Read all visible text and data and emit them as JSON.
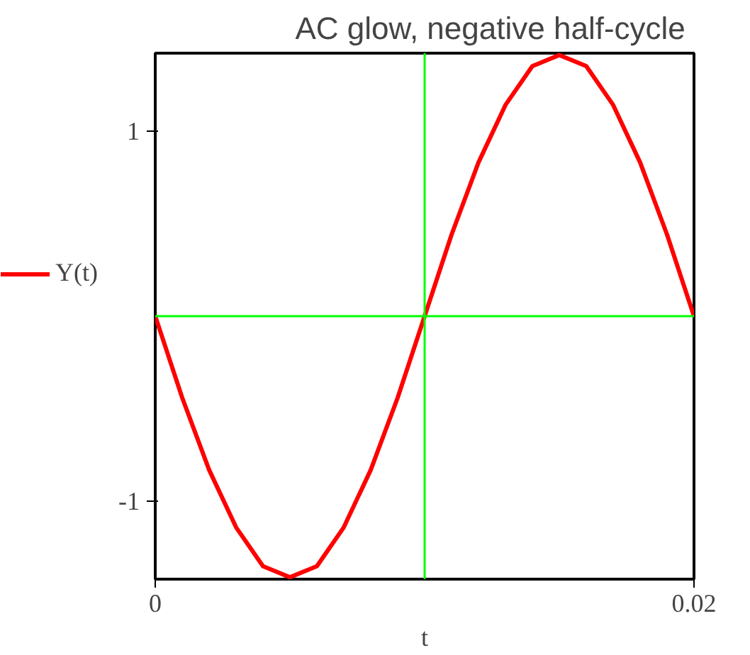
{
  "chart_data": {
    "type": "line",
    "title": "AC  glow, negative half-cycle",
    "xlabel": "t",
    "x": [
      0,
      0.001,
      0.002,
      0.003,
      0.004,
      0.005,
      0.006,
      0.007,
      0.008,
      0.009,
      0.01,
      0.011,
      0.012,
      0.013,
      0.014,
      0.015,
      0.016,
      0.017,
      0.018,
      0.019,
      0.02
    ],
    "series": [
      {
        "name": "Y(t)",
        "color": "#ff0000",
        "values": [
          0,
          -0.44,
          -0.83,
          -1.14,
          -1.35,
          -1.41,
          -1.35,
          -1.14,
          -0.83,
          -0.44,
          0,
          0.44,
          0.83,
          1.14,
          1.35,
          1.41,
          1.35,
          1.14,
          0.83,
          0.44,
          0
        ]
      }
    ],
    "xlim": [
      0,
      0.02
    ],
    "ylim": [
      -1.42,
      1.42
    ],
    "xticks": [
      0,
      0.02
    ],
    "yticks": [
      -1,
      1
    ],
    "ref_lines": [
      {
        "axis": "x",
        "value": 0.01,
        "color": "#00ff00"
      },
      {
        "axis": "y",
        "value": 0,
        "color": "#00ff00"
      }
    ],
    "grid": false,
    "legend": "left",
    "line_style": "solid",
    "marker": "none"
  }
}
